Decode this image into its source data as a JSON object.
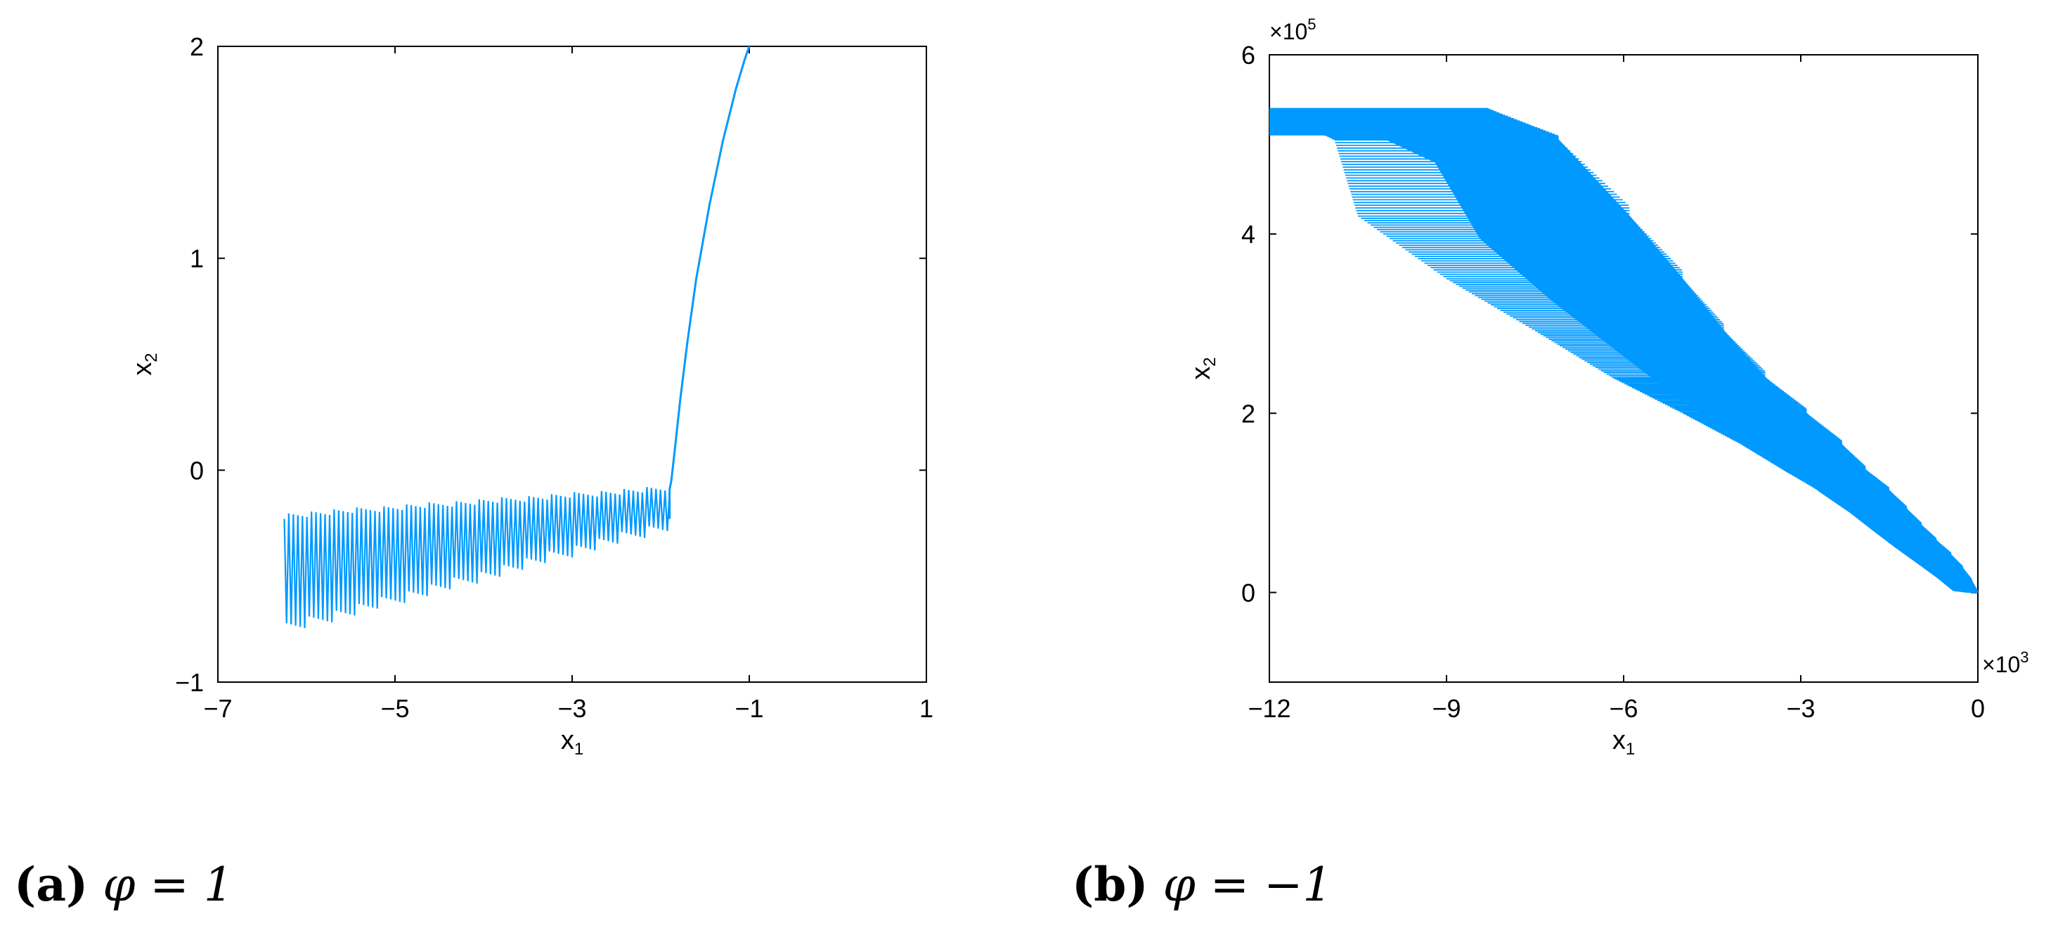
{
  "chart_data": [
    {
      "type": "line",
      "panel": "a",
      "caption_letter": "(a)",
      "caption_text": "φ = 1",
      "xlabel": "x1",
      "ylabel": "x2",
      "xlim": [
        -7,
        1
      ],
      "ylim": [
        -1,
        2
      ],
      "xticks": [
        -7,
        -5,
        -3,
        -1,
        1
      ],
      "yticks": [
        -1,
        0,
        1,
        2
      ],
      "xtick_labels": [
        "−7",
        "−5",
        "−3",
        "−1",
        "1"
      ],
      "ytick_labels": [
        "−1",
        "0",
        "1",
        "2"
      ],
      "color": "#0099FF",
      "series": [
        {
          "style": "curve",
          "x": [
            -1.0,
            -1.05,
            -1.15,
            -1.3,
            -1.45,
            -1.6,
            -1.7,
            -1.78,
            -1.84,
            -1.88,
            -1.9
          ],
          "y": [
            2.0,
            1.94,
            1.8,
            1.55,
            1.25,
            0.9,
            0.6,
            0.33,
            0.1,
            -0.05,
            -0.09
          ]
        },
        {
          "style": "zigzag-band",
          "x_start": -1.9,
          "x_end": -6.25,
          "upper_start": -0.07,
          "upper_end": -0.2,
          "lower_start": -0.23,
          "lower_end": -0.72,
          "teeth": 16,
          "oscillations": 170
        }
      ]
    },
    {
      "type": "line",
      "panel": "b",
      "caption_letter": "(b)",
      "caption_text": "φ = −1",
      "xlabel": "x1",
      "ylabel": "x2",
      "x_scale_label": "×10",
      "x_scale_exp": "3",
      "y_scale_label": "×10",
      "y_scale_exp": "5",
      "xlim": [
        -12,
        0
      ],
      "ylim": [
        -1,
        6
      ],
      "xticks": [
        -12,
        -9,
        -6,
        -3,
        0
      ],
      "yticks": [
        0,
        2,
        4,
        6
      ],
      "xtick_labels": [
        "−12",
        "−9",
        "−6",
        "−3",
        "0"
      ],
      "ytick_labels": [
        "0",
        "2",
        "4",
        "6"
      ],
      "color": "#0099FF",
      "steps": [
        {
          "y": 5.4,
          "x_left": -12.0,
          "x_right": -8.3
        },
        {
          "y": 5.05,
          "x_left": -10.9,
          "x_right": -7.1
        },
        {
          "y": 4.2,
          "x_left": -10.5,
          "x_right": -5.9
        },
        {
          "y": 3.5,
          "x_left": -9.0,
          "x_right": -5.0
        },
        {
          "y": 2.92,
          "x_left": -7.5,
          "x_right": -4.3
        },
        {
          "y": 2.4,
          "x_left": -6.2,
          "x_right": -3.6
        },
        {
          "y": 2.0,
          "x_left": -5.0,
          "x_right": -2.9
        },
        {
          "y": 1.65,
          "x_left": -4.0,
          "x_right": -2.3
        },
        {
          "y": 1.37,
          "x_left": -3.3,
          "x_right": -1.9
        },
        {
          "y": 1.14,
          "x_left": -2.7,
          "x_right": -1.5
        },
        {
          "y": 0.93,
          "x_left": -2.2,
          "x_right": -1.2
        },
        {
          "y": 0.75,
          "x_left": -1.75,
          "x_right": -0.95
        },
        {
          "y": 0.58,
          "x_left": -1.3,
          "x_right": -0.7
        },
        {
          "y": 0.42,
          "x_left": -0.9,
          "x_right": -0.45
        },
        {
          "y": 0.27,
          "x_left": -0.55,
          "x_right": -0.25
        },
        {
          "y": 0.13,
          "x_left": -0.25,
          "x_right": -0.1
        },
        {
          "y": 0.0,
          "x_left": -0.01,
          "x_right": 0.0
        }
      ]
    }
  ]
}
